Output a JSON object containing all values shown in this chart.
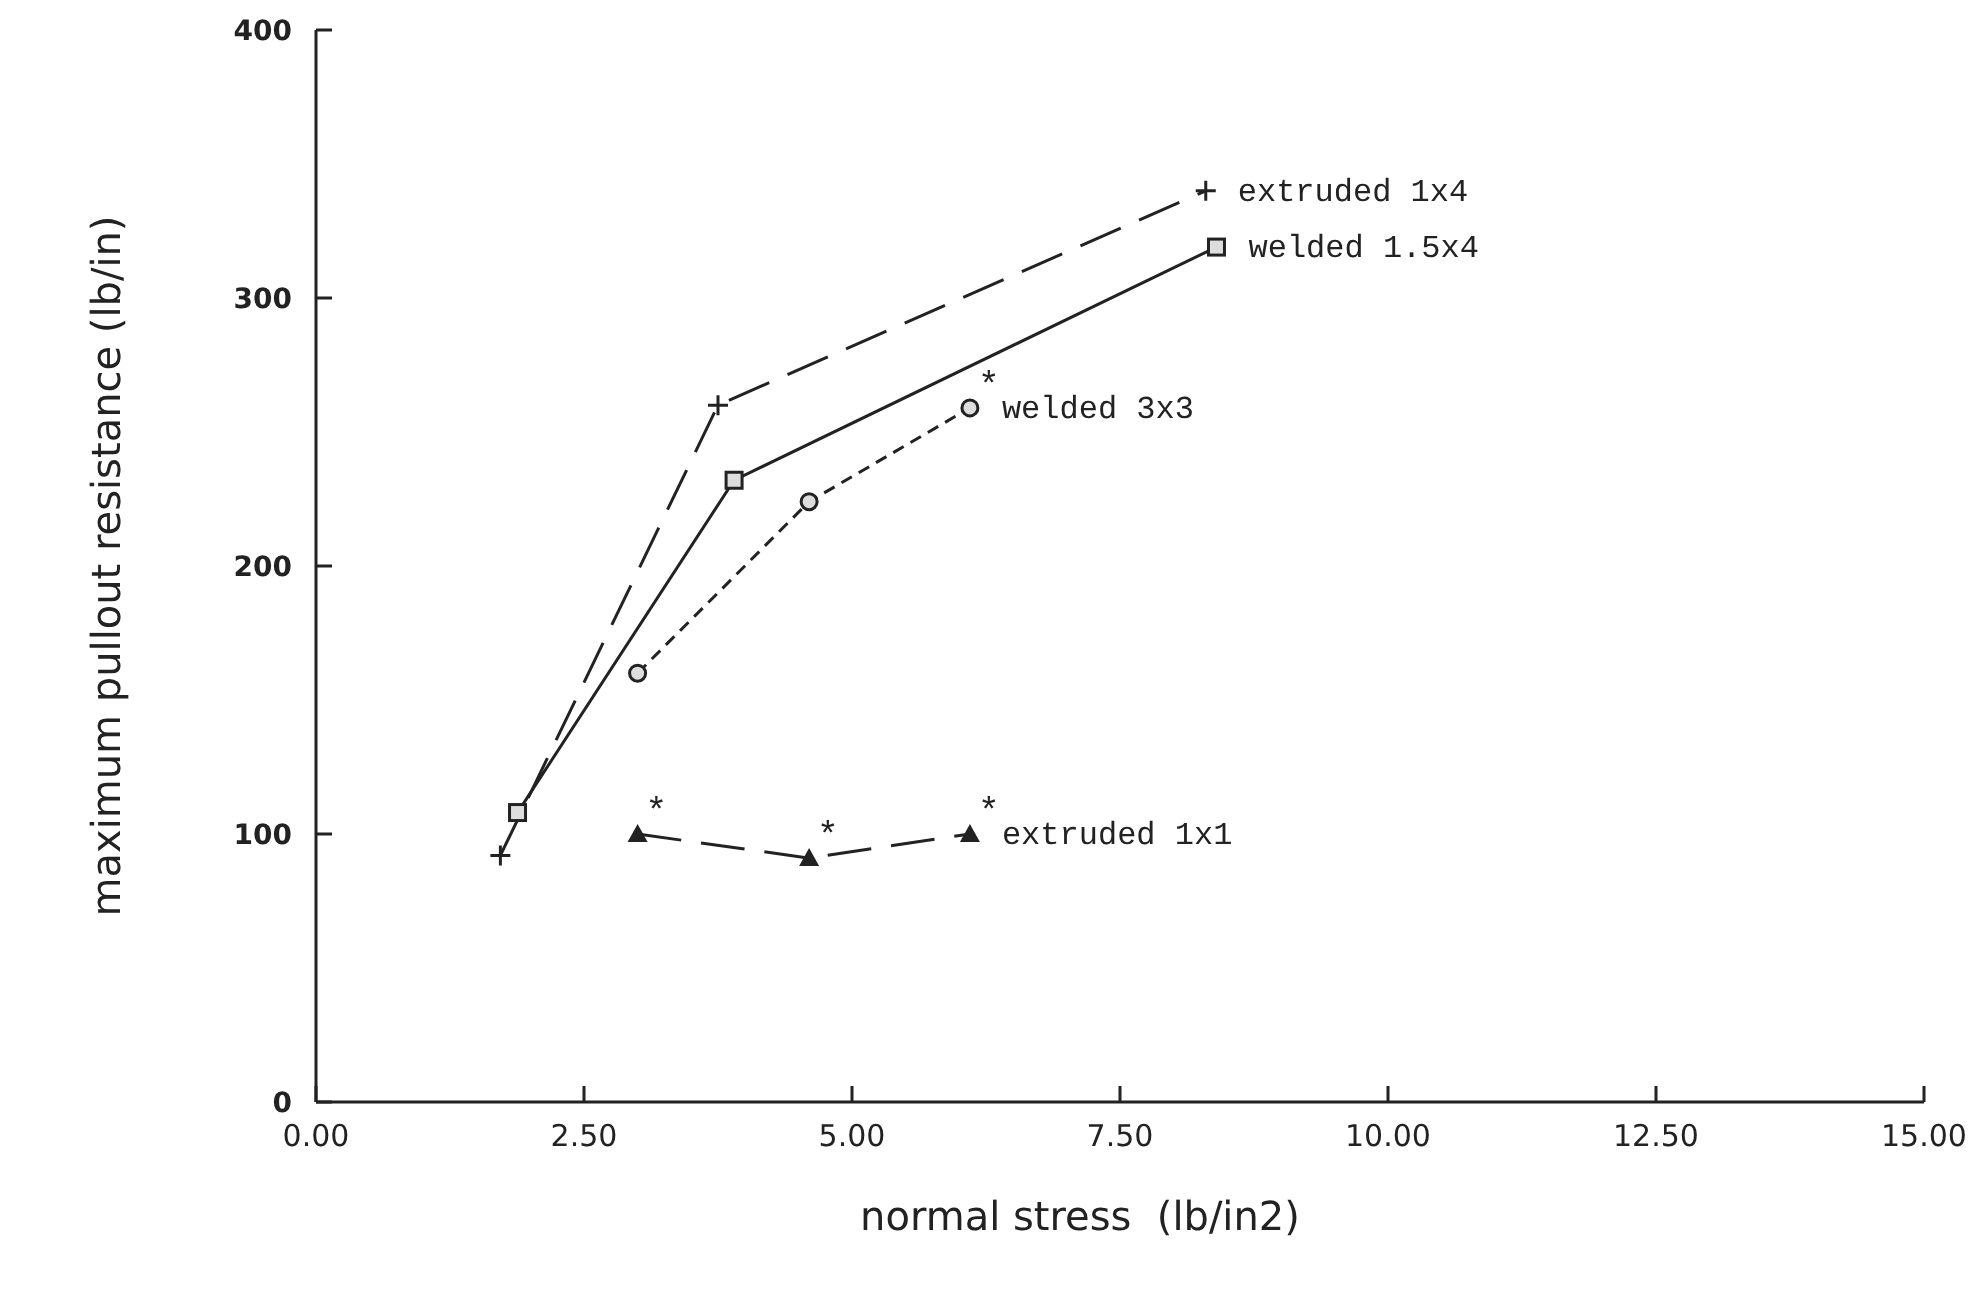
{
  "chart_data": {
    "type": "line",
    "xlabel": "normal stress  (lb/in2)",
    "ylabel": "maximum pullout resistance (lb/in)",
    "xlim": [
      0,
      15
    ],
    "ylim": [
      0,
      400
    ],
    "xticks": [
      {
        "value": 0,
        "label": "0.00"
      },
      {
        "value": 2.5,
        "label": "2.50"
      },
      {
        "value": 5,
        "label": "5.00"
      },
      {
        "value": 7.5,
        "label": "7.50"
      },
      {
        "value": 10,
        "label": "10.00"
      },
      {
        "value": 12.5,
        "label": "12.50"
      },
      {
        "value": 15,
        "label": "15.00"
      }
    ],
    "yticks": [
      0,
      100,
      200,
      300,
      400
    ],
    "grid": false,
    "series": [
      {
        "name": "extruded 1x4",
        "color": "#222222",
        "x": [
          1.72,
          3.75,
          8.3
        ],
        "values": [
          92,
          260,
          340
        ],
        "marker": "cross",
        "line_style": "dashed"
      },
      {
        "name": "welded 1.5x4",
        "color": "#222222",
        "x": [
          1.88,
          3.9,
          8.4
        ],
        "values": [
          108,
          232,
          319
        ],
        "marker": "square",
        "line_style": "solid"
      },
      {
        "name": "welded 3x3",
        "color": "#222222",
        "x": [
          3.0,
          4.6,
          6.1
        ],
        "values": [
          160,
          224,
          259
        ],
        "marker": "circle",
        "line_style": "dotted"
      },
      {
        "name": "extruded 1x1",
        "color": "#222222",
        "x": [
          3.0,
          4.6,
          6.1
        ],
        "values": [
          100,
          91,
          100
        ],
        "marker": "triangle",
        "line_style": "dashed"
      }
    ],
    "annotations": [
      {
        "text": "*",
        "x": 3.0,
        "y": 100
      },
      {
        "text": "*",
        "x": 4.6,
        "y": 91
      },
      {
        "text": "*",
        "x": 6.1,
        "y": 100
      },
      {
        "text": "*",
        "x": 6.1,
        "y": 259
      }
    ]
  }
}
